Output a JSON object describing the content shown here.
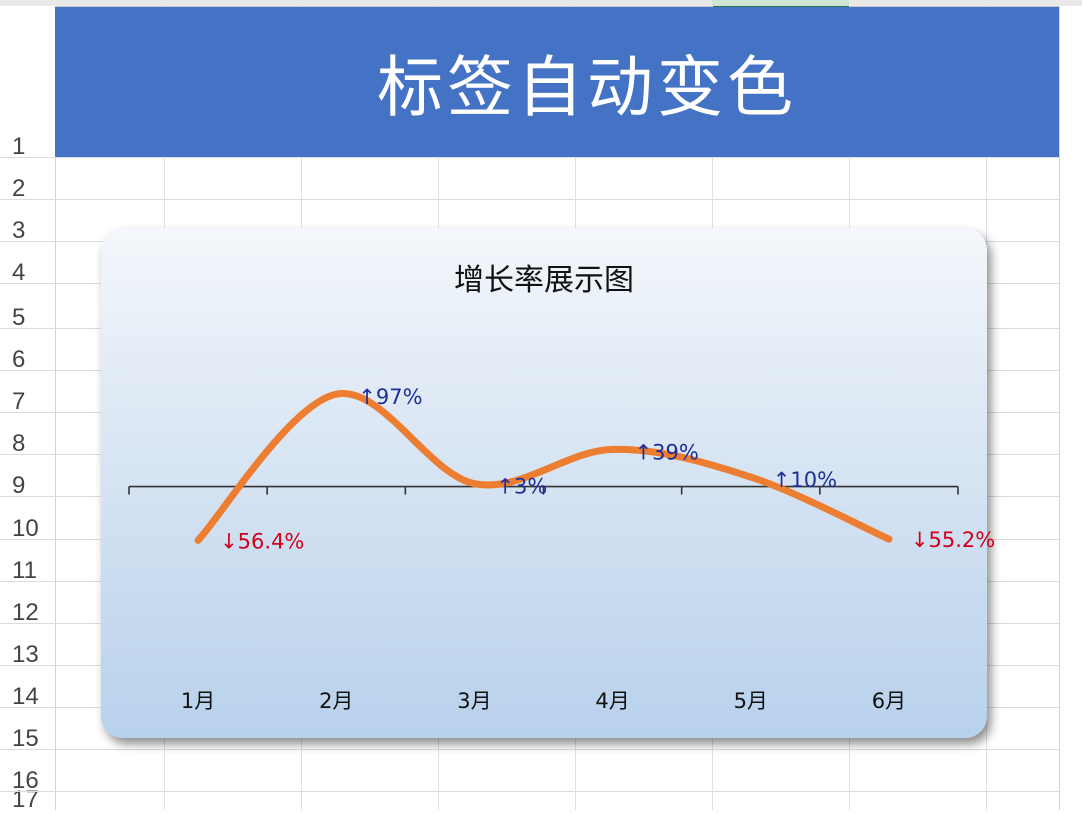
{
  "sheet": {
    "title": "标签自动变色",
    "row_numbers": [
      "1",
      "2",
      "3",
      "4",
      "5",
      "6",
      "7",
      "8",
      "9",
      "10",
      "11",
      "12",
      "13",
      "14",
      "15",
      "16",
      "17"
    ]
  },
  "colors": {
    "banner": "#4472c4",
    "line": "#ed7d31",
    "positive_label": "#1f2f9a",
    "negative_label": "#d0021b"
  },
  "chart_data": {
    "type": "line",
    "title": "增长率展示图",
    "categories": [
      "1月",
      "2月",
      "3月",
      "4月",
      "5月",
      "6月"
    ],
    "series": [
      {
        "values": [
          -0.564,
          0.97,
          0.03,
          0.39,
          0.1,
          -0.552
        ]
      }
    ],
    "data_labels": [
      "↓56.4%",
      "↑97%",
      "↑3%",
      "↑39%",
      "↑10%",
      "↓55.2%"
    ],
    "ylim": [
      -1.8,
      1.35
    ],
    "smooth": true,
    "grid": false,
    "legend": "none"
  }
}
